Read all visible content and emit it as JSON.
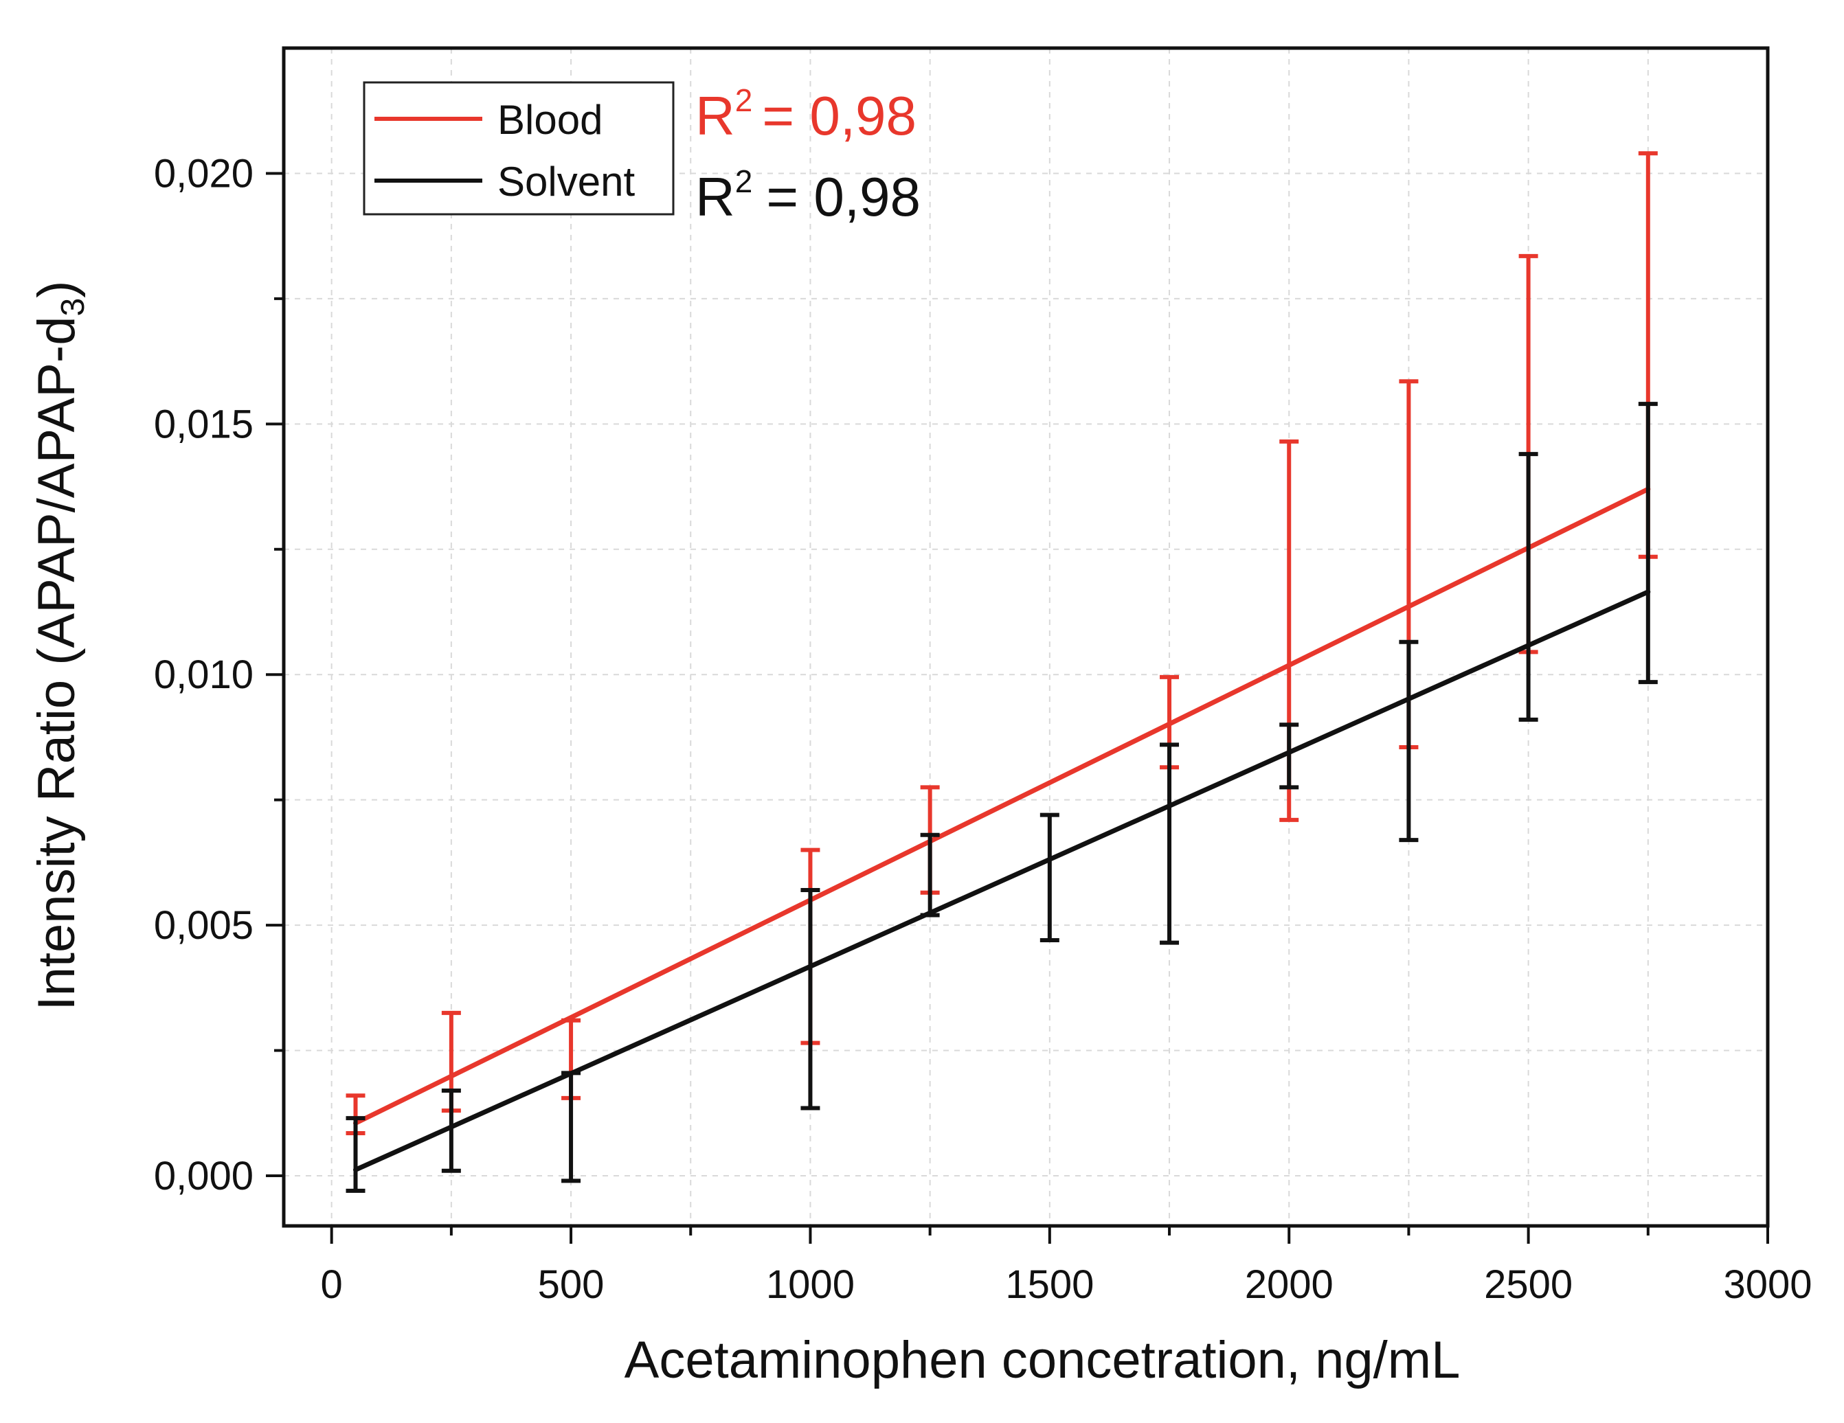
{
  "chart_data": {
    "type": "line",
    "xlabel": "Acetaminophen concetration, ng/mL",
    "ylabel": "Intensity Ratio (APAP/APAP-d",
    "ylabel_subscript": "3",
    "ylabel_close": ")",
    "xlim": [
      -100,
      3000
    ],
    "ylim": [
      -0.001,
      0.0225
    ],
    "xticks": [
      0,
      500,
      1000,
      1500,
      2000,
      2500,
      3000
    ],
    "xtick_labels": [
      "0",
      "500",
      "1000",
      "1500",
      "2000",
      "2500",
      "3000"
    ],
    "yticks": [
      0.0,
      0.005,
      0.01,
      0.015,
      0.02
    ],
    "ytick_labels": [
      "0,000",
      "0,005",
      "0,010",
      "0,015",
      "0,020"
    ],
    "grid": true,
    "legend_position": "top-left",
    "series": [
      {
        "name": "Blood",
        "color": "#e8372c",
        "r2_label": "R",
        "r2_sup": "2",
        "r2_value": "= 0,98",
        "fit_line": {
          "x": [
            50,
            2750
          ],
          "y": [
            0.00105,
            0.0137
          ]
        },
        "error_bars": [
          {
            "x": 50,
            "low": 0.00085,
            "high": 0.0016
          },
          {
            "x": 250,
            "low": 0.0013,
            "high": 0.00325
          },
          {
            "x": 500,
            "low": 0.00155,
            "high": 0.0031
          },
          {
            "x": 1000,
            "low": 0.00265,
            "high": 0.0065
          },
          {
            "x": 1250,
            "low": 0.00565,
            "high": 0.00775
          },
          {
            "x": 1750,
            "low": 0.00815,
            "high": 0.00995
          },
          {
            "x": 2000,
            "low": 0.0071,
            "high": 0.01465
          },
          {
            "x": 2250,
            "low": 0.00855,
            "high": 0.01585
          },
          {
            "x": 2500,
            "low": 0.01045,
            "high": 0.01835
          },
          {
            "x": 2750,
            "low": 0.01235,
            "high": 0.0204
          }
        ]
      },
      {
        "name": "Solvent",
        "color": "#111111",
        "r2_label": "R",
        "r2_sup": "2",
        "r2_value": "= 0,98",
        "fit_line": {
          "x": [
            50,
            2750
          ],
          "y": [
            0.00012,
            0.01165
          ]
        },
        "error_bars": [
          {
            "x": 50,
            "low": -0.0003,
            "high": 0.00115
          },
          {
            "x": 250,
            "low": 0.0001,
            "high": 0.0017
          },
          {
            "x": 500,
            "low": -0.0001,
            "high": 0.00205
          },
          {
            "x": 1000,
            "low": 0.00135,
            "high": 0.0057
          },
          {
            "x": 1250,
            "low": 0.0052,
            "high": 0.0068
          },
          {
            "x": 1500,
            "low": 0.0047,
            "high": 0.0072
          },
          {
            "x": 1750,
            "low": 0.00465,
            "high": 0.0086
          },
          {
            "x": 2000,
            "low": 0.00775,
            "high": 0.009
          },
          {
            "x": 2250,
            "low": 0.0067,
            "high": 0.01065
          },
          {
            "x": 2500,
            "low": 0.0091,
            "high": 0.0144
          },
          {
            "x": 2750,
            "low": 0.00985,
            "high": 0.0154
          }
        ]
      }
    ]
  }
}
